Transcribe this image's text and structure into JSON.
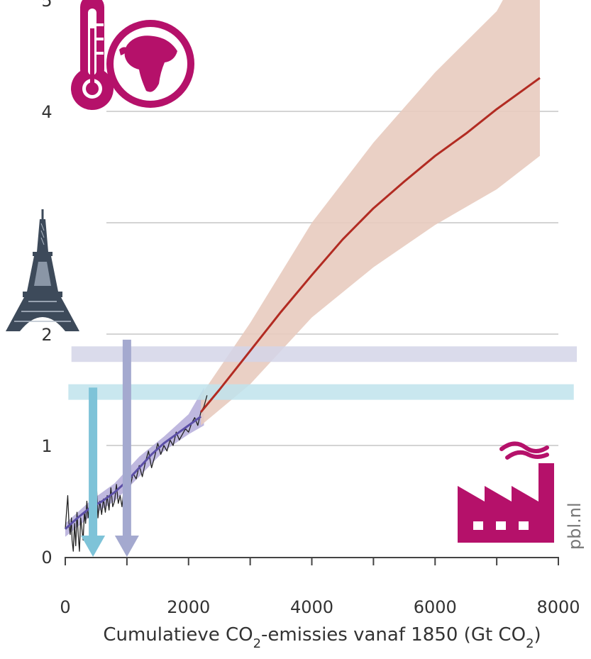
{
  "chart_data": {
    "type": "line",
    "title": "",
    "xlabel": {
      "prefix": "Cumulatieve CO",
      "sub": "2",
      "mid": "-emissies vanaf 1850 (Gt CO",
      "sub2": "2",
      "suffix": ")"
    },
    "ylabel": "",
    "xlim": [
      0,
      8000
    ],
    "ylim": [
      0,
      5
    ],
    "x_ticks": [
      0,
      2000,
      4000,
      6000,
      8000
    ],
    "y_ticks": [
      {
        "value": 0,
        "label": "0"
      },
      {
        "value": 1,
        "label": "1"
      },
      {
        "value": 2,
        "label": "2"
      },
      {
        "value": 4,
        "label": "4"
      },
      {
        "value": 5,
        "label": "5"
      }
    ],
    "grid": true,
    "series": [
      {
        "role": "observed-annual",
        "color": "#222222",
        "x": [
          0,
          40,
          60,
          80,
          100,
          110,
          130,
          150,
          170,
          190,
          210,
          230,
          250,
          270,
          290,
          310,
          330,
          350,
          370,
          390,
          410,
          430,
          450,
          470,
          490,
          510,
          530,
          560,
          590,
          620,
          650,
          680,
          710,
          740,
          770,
          800,
          830,
          860,
          890,
          920,
          950,
          980,
          1010,
          1050,
          1100,
          1150,
          1200,
          1250,
          1300,
          1350,
          1400,
          1450,
          1500,
          1550,
          1600,
          1650,
          1700,
          1750,
          1800,
          1850,
          1900,
          1950,
          2000,
          2050,
          2100,
          2150,
          2200,
          2250,
          2300
        ],
        "y": [
          0.25,
          0.55,
          0.3,
          0.2,
          0.35,
          0.15,
          0.05,
          0.3,
          0.1,
          0.4,
          0.2,
          0.05,
          0.35,
          0.25,
          0.15,
          0.4,
          0.3,
          0.5,
          0.35,
          0.45,
          0.25,
          0.5,
          0.3,
          0.55,
          0.4,
          0.6,
          0.35,
          0.5,
          0.38,
          0.52,
          0.4,
          0.55,
          0.42,
          0.62,
          0.45,
          0.5,
          0.65,
          0.48,
          0.55,
          0.45,
          0.6,
          0.55,
          0.68,
          0.62,
          0.75,
          0.7,
          0.82,
          0.72,
          0.85,
          0.95,
          0.8,
          0.9,
          1.02,
          0.92,
          1.0,
          0.95,
          1.05,
          1.0,
          1.12,
          1.05,
          1.1,
          1.15,
          1.12,
          1.2,
          1.25,
          1.18,
          1.3,
          1.35,
          1.45
        ]
      },
      {
        "role": "observed-smoothed",
        "color": "#5b4fa6",
        "x": [
          0,
          200,
          400,
          600,
          800,
          1000,
          1200,
          1400,
          1600,
          1800,
          2000,
          2200
        ],
        "y": [
          0.25,
          0.35,
          0.44,
          0.5,
          0.58,
          0.68,
          0.8,
          0.92,
          1.02,
          1.1,
          1.18,
          1.26
        ]
      },
      {
        "role": "projected-median",
        "color": "#b22b22",
        "x": [
          2200,
          2500,
          3000,
          3500,
          4000,
          4500,
          5000,
          5500,
          6000,
          6500,
          7000,
          7500,
          7700
        ],
        "y": [
          1.3,
          1.5,
          1.85,
          2.2,
          2.53,
          2.85,
          3.13,
          3.37,
          3.6,
          3.8,
          4.02,
          4.22,
          4.3
        ]
      }
    ],
    "bands": [
      {
        "role": "observed-uncertainty",
        "color": "#b8b0dc",
        "x": [
          0,
          400,
          800,
          1200,
          1600,
          2000,
          2250
        ],
        "lower": [
          0.18,
          0.36,
          0.5,
          0.72,
          0.95,
          1.1,
          1.18
        ],
        "upper": [
          0.3,
          0.5,
          0.66,
          0.9,
          1.08,
          1.28,
          1.52
        ]
      },
      {
        "role": "projection-range",
        "color": "#e8cbbf",
        "x": [
          2200,
          3000,
          4000,
          5000,
          6000,
          7000,
          7700
        ],
        "lower": [
          1.18,
          1.55,
          2.15,
          2.6,
          2.98,
          3.3,
          3.6
        ],
        "upper": [
          1.45,
          2.1,
          3.0,
          3.72,
          4.35,
          4.9,
          5.6
        ]
      }
    ],
    "target_bands": [
      {
        "role": "2C-target",
        "color": "#d4d5e8",
        "y_center": 1.82,
        "height": 0.14,
        "x_start": 100,
        "x_end": 8300
      },
      {
        "role": "1.5C-target",
        "color": "#bfe3ec",
        "y_center": 1.48,
        "height": 0.14,
        "x_start": 50,
        "x_end": 8250
      }
    ],
    "budget_arrows": [
      {
        "role": "1.5C-budget",
        "color": "#7ec3d8",
        "x": 450,
        "y_from": 1.52,
        "y_to": 0.0
      },
      {
        "role": "2C-budget",
        "color": "#a4a9cf",
        "x": 1000,
        "y_from": 1.95,
        "y_to": 0.0
      }
    ],
    "icons": {
      "thermometer_globe": {
        "name": "thermometer-globe-icon",
        "color": "#b5116a"
      },
      "eiffel_tower": {
        "name": "eiffel-tower-icon",
        "color": "#3d4a5a"
      },
      "factory": {
        "name": "factory-icon",
        "color": "#b5116a"
      }
    },
    "credit": "pbl.nl"
  }
}
